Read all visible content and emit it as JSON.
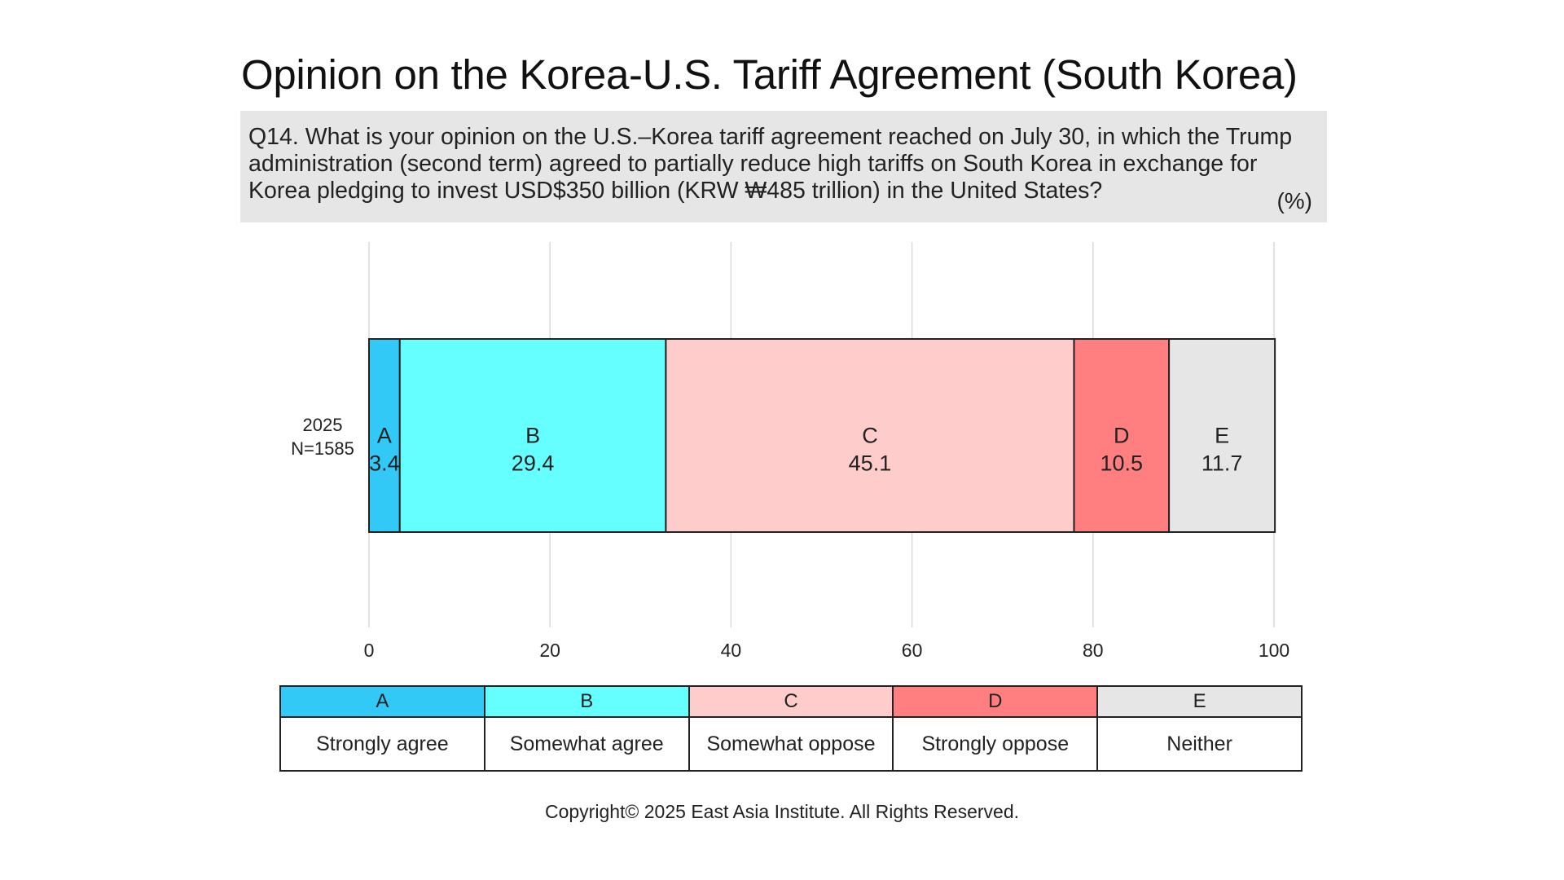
{
  "title": "Opinion on the Korea-U.S. Tariff Agreement (South Korea)",
  "question": "Q14. What is your opinion on the U.S.–Korea tariff agreement reached on July 30, in which the Trump administration (second term) agreed to partially reduce high tariffs on South Korea in exchange for Korea pledging to invest USD$350 billion (KRW ₩485 trillion) in the United States?",
  "unit": "(%)",
  "copyright": "Copyright© 2025 East Asia Institute. All Rights Reserved.",
  "chart_data": {
    "type": "bar",
    "orientation": "horizontal",
    "stacked": true,
    "categories": [
      "2025\nN=1585"
    ],
    "series": [
      {
        "name": "A",
        "label": "Strongly agree",
        "values": [
          3.4
        ],
        "color": "#33c9f7"
      },
      {
        "name": "B",
        "label": "Somewhat agree",
        "values": [
          29.4
        ],
        "color": "#66ffff"
      },
      {
        "name": "C",
        "label": "Somewhat oppose",
        "values": [
          45.1
        ],
        "color": "#ffcccc"
      },
      {
        "name": "D",
        "label": "Strongly oppose",
        "values": [
          10.5
        ],
        "color": "#ff7f80"
      },
      {
        "name": "E",
        "label": "Neither",
        "values": [
          11.7
        ],
        "color": "#e6e6e6"
      }
    ],
    "xlim": [
      0,
      100
    ],
    "xticks": [
      0,
      20,
      40,
      60,
      80,
      100
    ],
    "grid": true,
    "legend": "bottom"
  }
}
